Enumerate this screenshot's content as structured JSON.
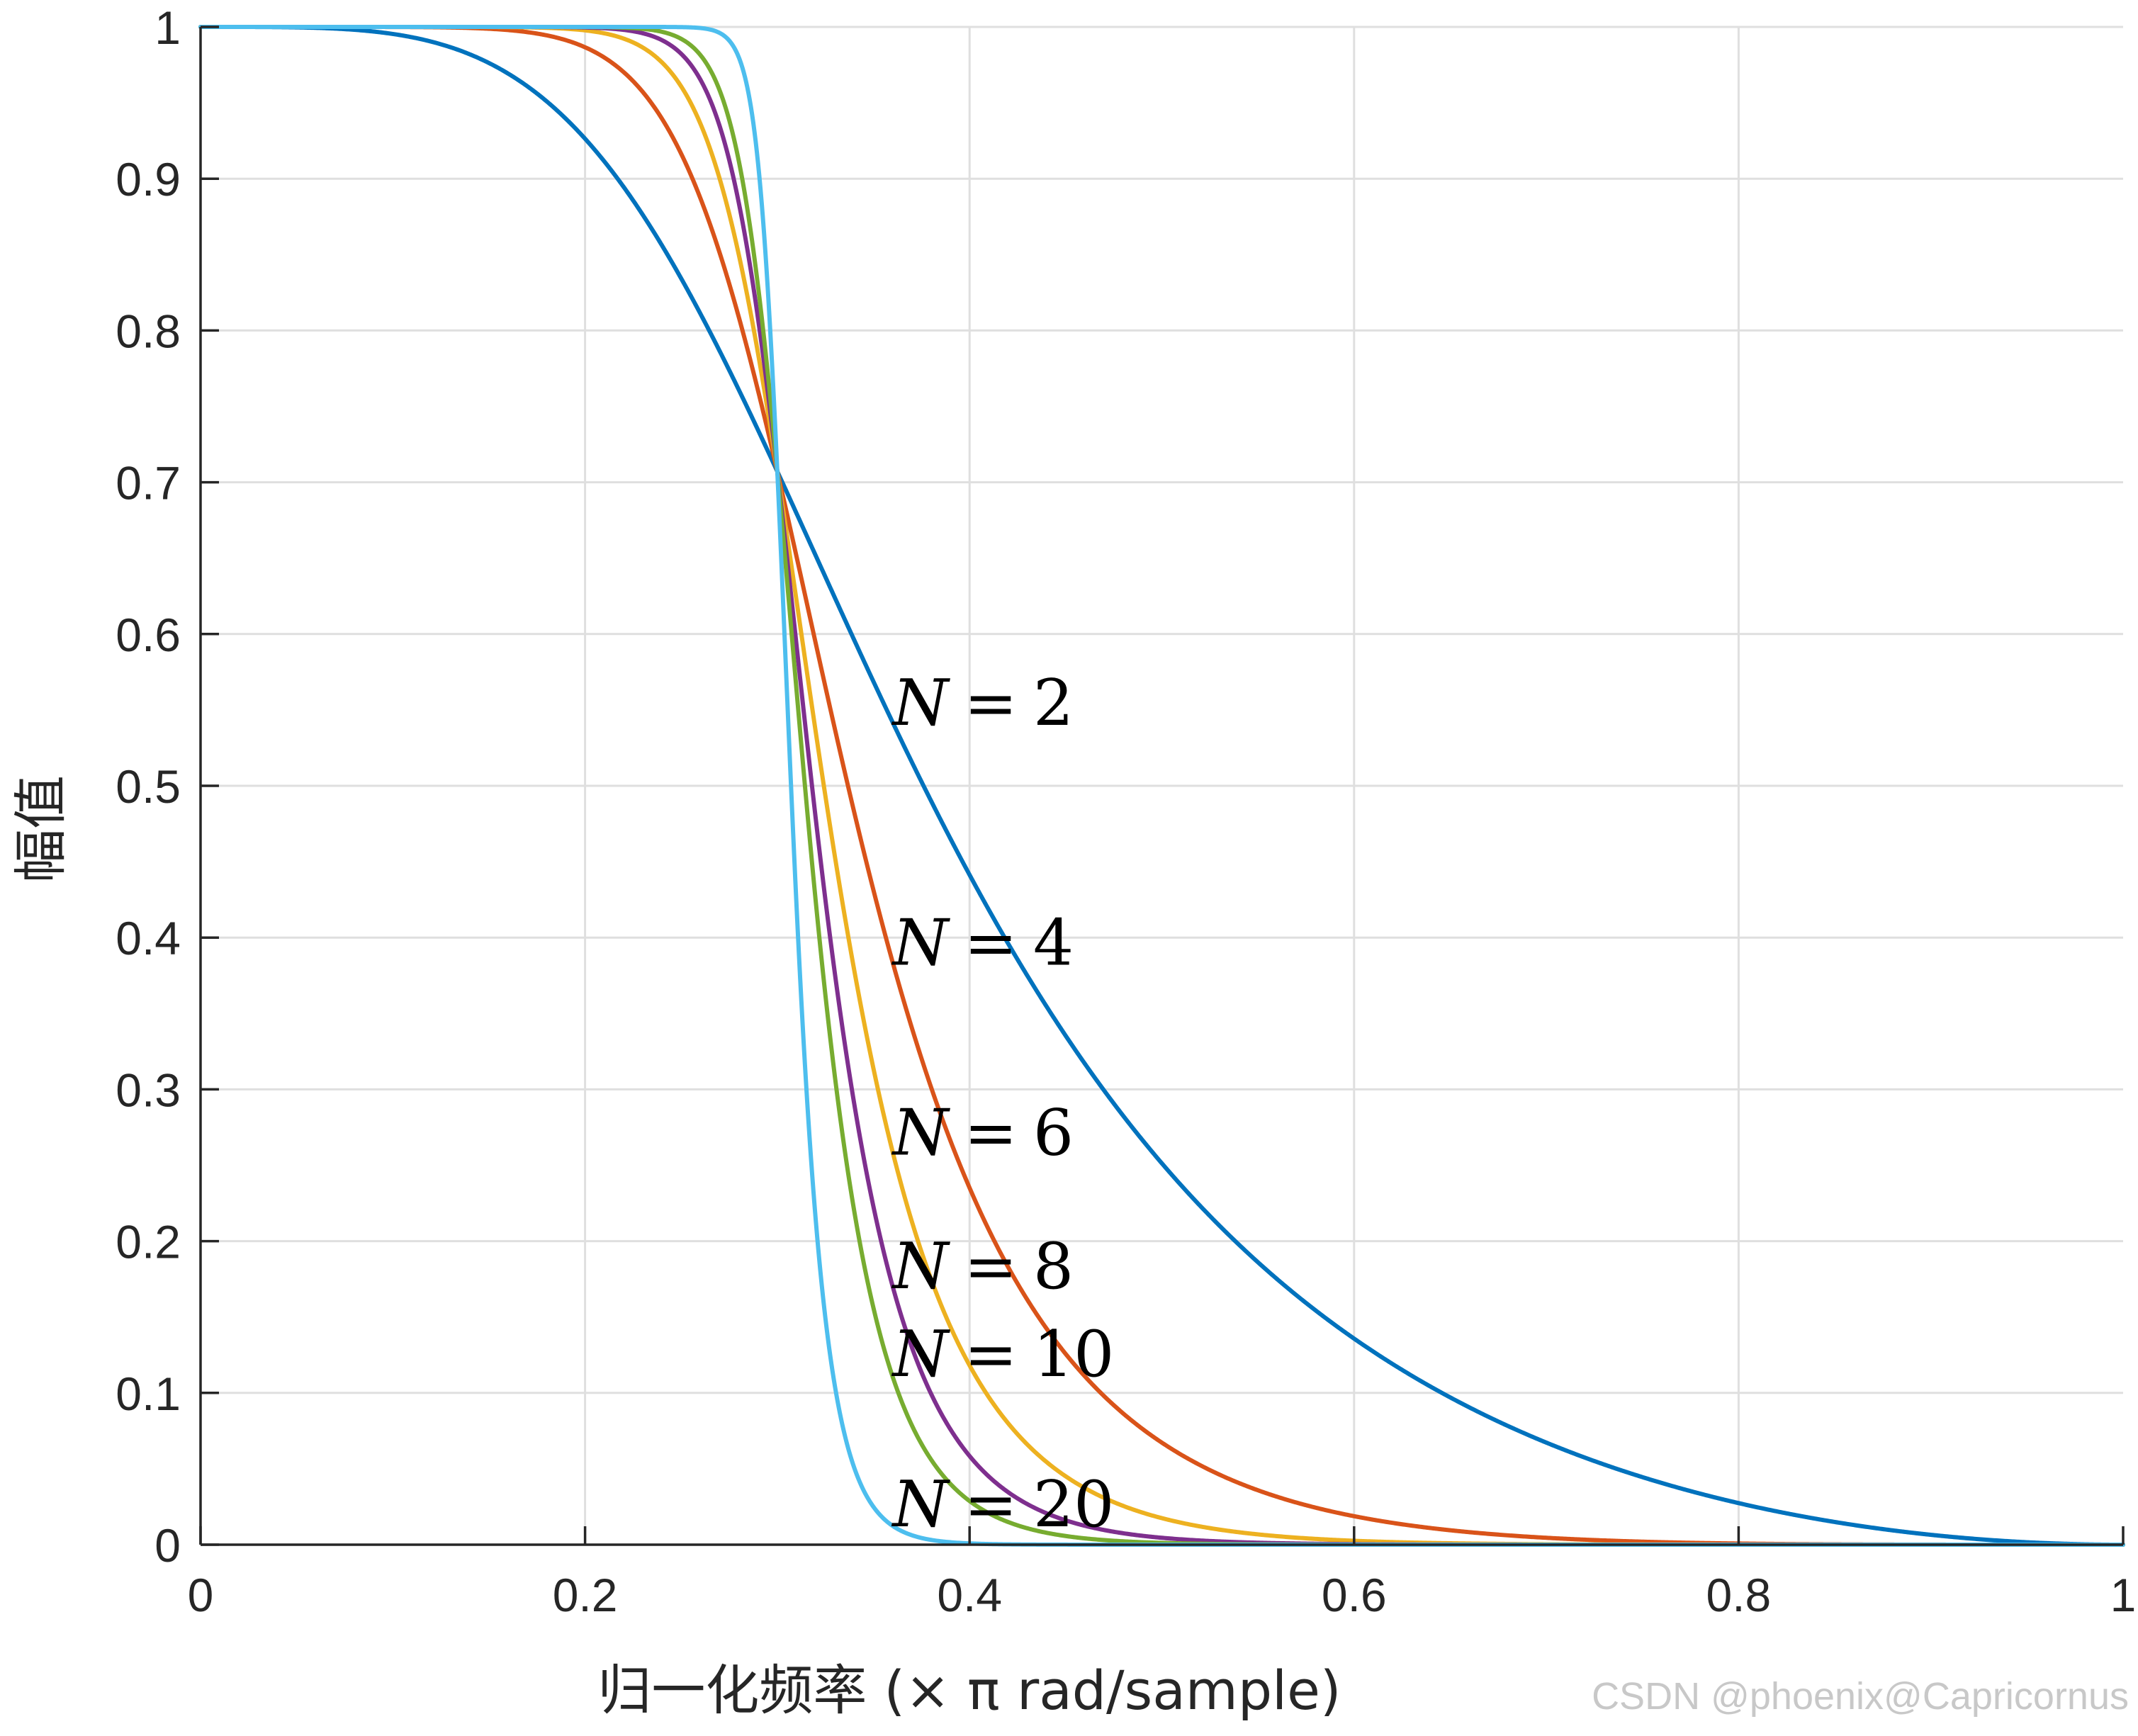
{
  "chart_data": {
    "type": "line",
    "title": "",
    "xlabel": "归一化频率 (× π rad/sample)",
    "ylabel": "幅值",
    "xlim": [
      0,
      1
    ],
    "ylim": [
      0,
      1
    ],
    "grid": true,
    "x_ticks": [
      0,
      0.2,
      0.4,
      0.6,
      0.8,
      1
    ],
    "x_tick_labels": [
      "0",
      "0.2",
      "0.4",
      "0.6",
      "0.8",
      "1"
    ],
    "y_ticks": [
      0,
      0.1,
      0.2,
      0.3,
      0.4,
      0.5,
      0.6,
      0.7,
      0.8,
      0.9,
      1
    ],
    "y_tick_labels": [
      "0",
      "0.1",
      "0.2",
      "0.3",
      "0.4",
      "0.5",
      "0.6",
      "0.7",
      "0.8",
      "0.9",
      "1"
    ],
    "function": "Butterworth magnitude |H| = 1/sqrt(1 + (tan(pi*w/2)/tan(pi*0.3/2))^(2N)), cutoff 0.3",
    "cutoff": 0.3,
    "series": [
      {
        "name": "N = 2",
        "order": 2,
        "color": "#0072BD"
      },
      {
        "name": "N = 4",
        "order": 4,
        "color": "#D95319"
      },
      {
        "name": "N = 6",
        "order": 6,
        "color": "#EDB120"
      },
      {
        "name": "N = 8",
        "order": 8,
        "color": "#7E2F8E"
      },
      {
        "name": "N = 10",
        "order": 10,
        "color": "#77AC30"
      },
      {
        "name": "N = 20",
        "order": 20,
        "color": "#4DBEEE"
      }
    ],
    "annotations": [
      {
        "n": "N",
        "eq": "=",
        "value": "2",
        "x": 0.36,
        "y": 0.555
      },
      {
        "n": "N",
        "eq": "=",
        "value": "4",
        "x": 0.36,
        "y": 0.397
      },
      {
        "n": "N",
        "eq": "=",
        "value": "6",
        "x": 0.36,
        "y": 0.272
      },
      {
        "n": "N",
        "eq": "=",
        "value": "8",
        "x": 0.36,
        "y": 0.184
      },
      {
        "n": "N",
        "eq": "=",
        "value": "10",
        "x": 0.36,
        "y": 0.126
      },
      {
        "n": "N",
        "eq": "=",
        "value": "20",
        "x": 0.36,
        "y": 0.027
      }
    ]
  },
  "watermark": "CSDN @phoenix@Capricornus"
}
